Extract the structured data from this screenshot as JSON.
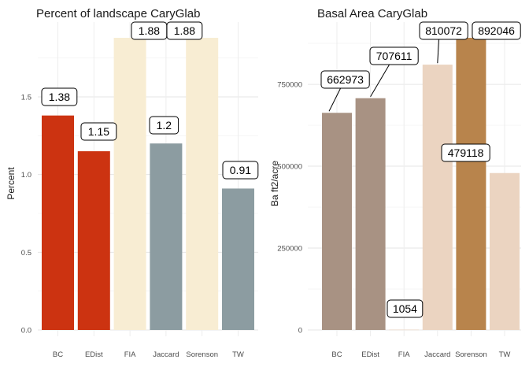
{
  "chart_data": [
    {
      "type": "bar",
      "title": "Percent of landscape  CaryGlab",
      "xlabel": "",
      "ylabel": "Percent",
      "categories": [
        "BC",
        "EDist",
        "FIA",
        "Jaccard",
        "Sorenson",
        "TW"
      ],
      "values": [
        1.38,
        1.15,
        1.88,
        1.2,
        1.88,
        0.91
      ],
      "data_labels": [
        "1.38",
        "1.15",
        "1.88",
        "1.2",
        "1.88",
        "0.91"
      ],
      "colors": [
        "#CC3311",
        "#CC3311",
        "#F8EDD3",
        "#8C9CA1",
        "#F8EDD3",
        "#8C9CA1"
      ],
      "ylim": [
        0,
        1.88
      ],
      "yticks": [
        0,
        0.5,
        1,
        1.5
      ],
      "ytick_labels": [
        "0.0",
        "0.5",
        "1.0",
        "1.5"
      ],
      "grid": true,
      "legend": "none"
    },
    {
      "type": "bar",
      "title": "Basal Area  CaryGlab",
      "xlabel": "",
      "ylabel": "Ba ft2/acre",
      "categories": [
        "BC",
        "EDist",
        "FIA",
        "Jaccard",
        "Sorenson",
        "TW"
      ],
      "values": [
        662973,
        707611,
        1054,
        810072,
        892046,
        479118
      ],
      "data_labels": [
        "662973",
        "707611",
        "1054",
        "810072",
        "892046",
        "479118"
      ],
      "colors": [
        "#A89283",
        "#A89283",
        "#EBD4C1",
        "#EBD4C1",
        "#B8844C",
        "#EBD4C1"
      ],
      "ylim": [
        0,
        892046
      ],
      "yticks": [
        0,
        250000,
        500000,
        750000
      ],
      "ytick_labels": [
        "0",
        "250000",
        "500000",
        "750000"
      ],
      "grid": true,
      "legend": "none"
    }
  ]
}
